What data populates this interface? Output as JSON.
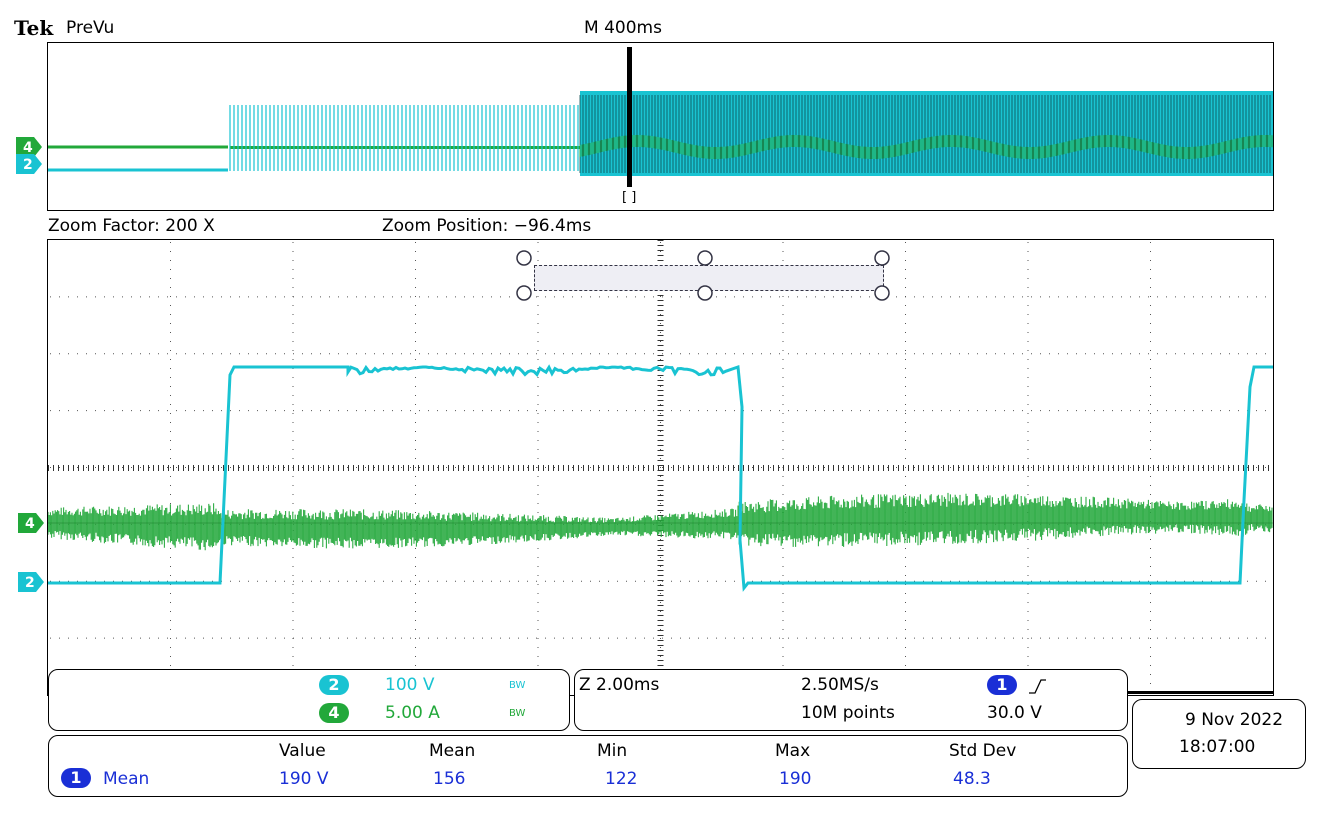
{
  "header": {
    "brand": "Tek",
    "mode": "PreVu",
    "main_timebase": "M 400ms"
  },
  "zoom_info": {
    "factor": "Zoom Factor: 200 X",
    "position": "Zoom Position: −96.4ms"
  },
  "window_marker": "[ ]",
  "channels": [
    {
      "id": "2",
      "scale": "100 V",
      "bw": "BW",
      "color": "#19c3d2"
    },
    {
      "id": "4",
      "scale": "5.00 A",
      "bw": "BW",
      "color": "#22a83a"
    }
  ],
  "timebase": {
    "zoom_scale": "Z 2.00ms",
    "sample_rate": "2.50MS/s",
    "record_length": "10M points",
    "trigger_channel": "1",
    "trigger_slope_icon": "rising-edge-icon",
    "trigger_level": "30.0 V"
  },
  "datetime": {
    "date": "9 Nov 2022",
    "time": "18:07:00"
  },
  "measurements": {
    "headers": [
      "Value",
      "Mean",
      "Min",
      "Max",
      "Std Dev"
    ],
    "rows": [
      {
        "source": "1",
        "type": "Mean",
        "values": [
          "190 V",
          "156",
          "122",
          "190",
          "48.3"
        ]
      }
    ]
  },
  "colors": {
    "ch2": "#19c3d2",
    "ch4": "#22a83a",
    "ch1": "#1a2fd6",
    "trigger_marker": "#f0a020"
  }
}
